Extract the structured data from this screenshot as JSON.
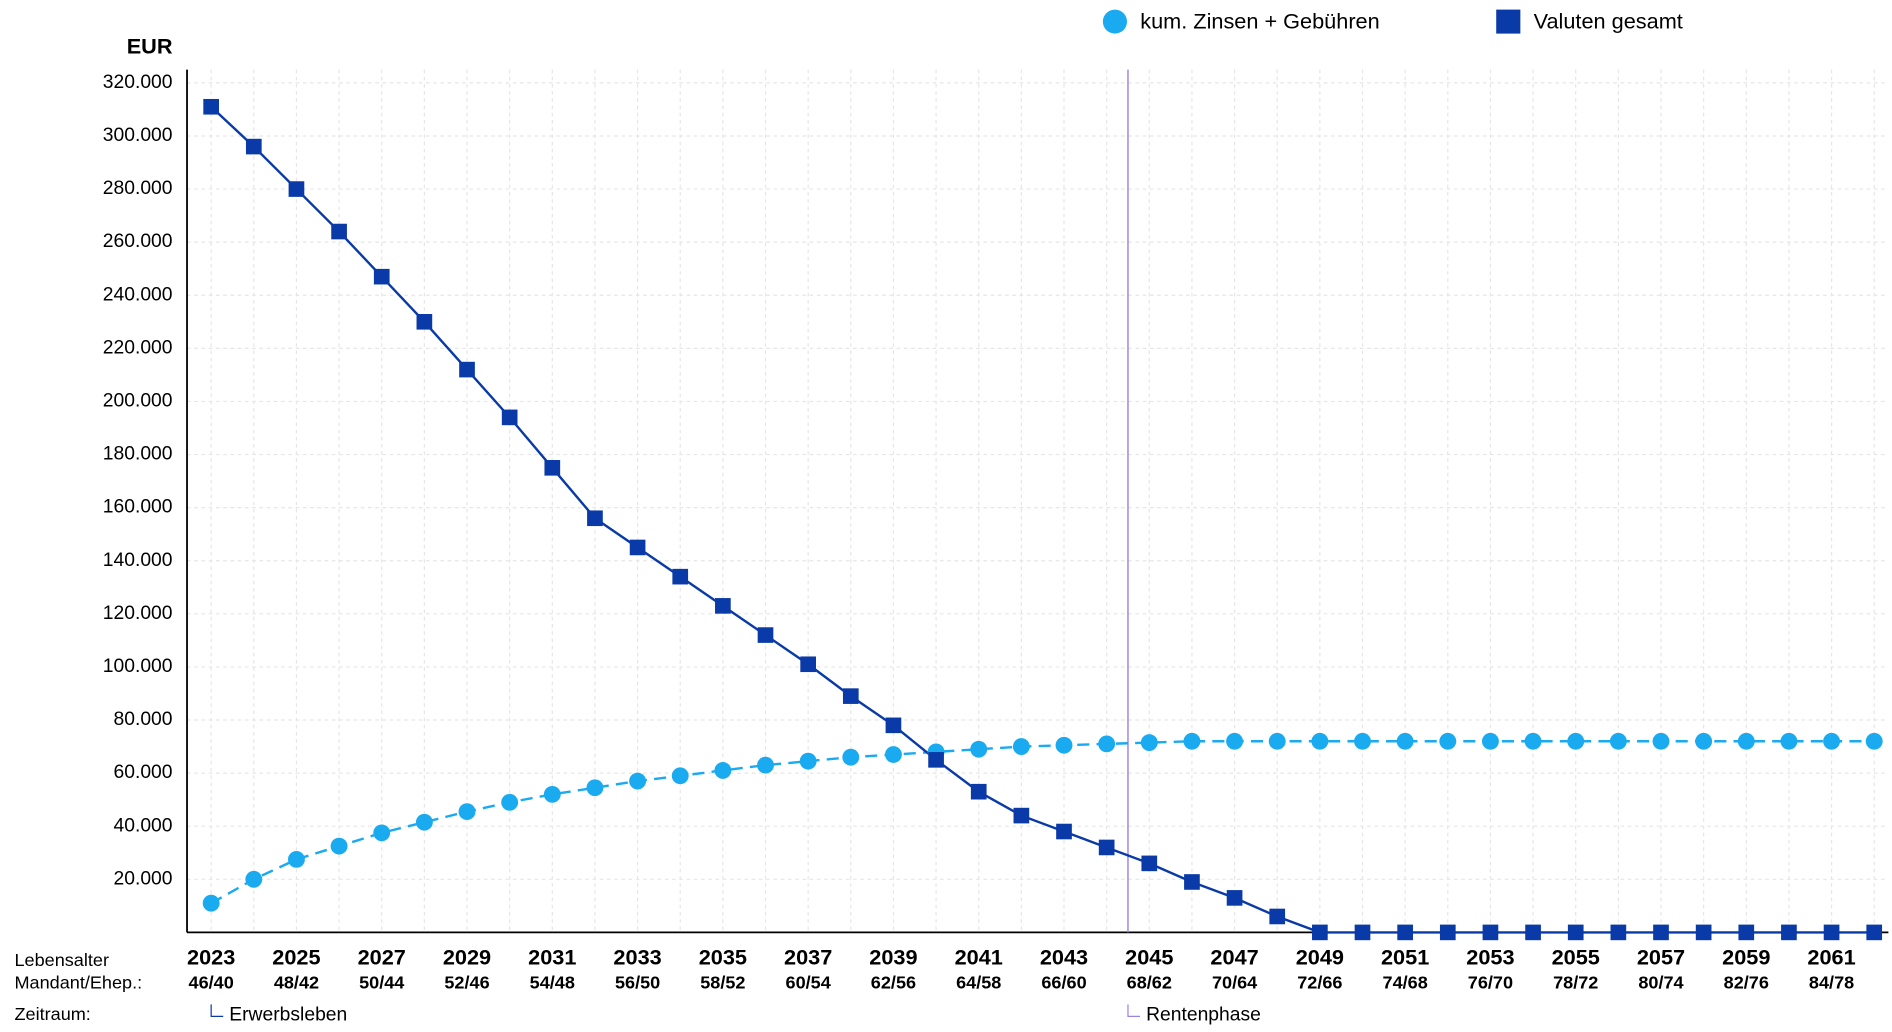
{
  "chart_data": {
    "type": "line",
    "y_label": "EUR",
    "categories": [
      "2023",
      null,
      "2025",
      null,
      "2027",
      null,
      "2029",
      null,
      "2031",
      null,
      "2033",
      null,
      "2035",
      null,
      "2037",
      null,
      "2039",
      null,
      "2041",
      null,
      "2043",
      null,
      "2045",
      null,
      "2047",
      null,
      "2049",
      null,
      "2051",
      null,
      "2053",
      null,
      "2055",
      null,
      "2057",
      null,
      "2059",
      null,
      "2061",
      null
    ],
    "ages": [
      "46/40",
      null,
      "48/42",
      null,
      "50/44",
      null,
      "52/46",
      null,
      "54/48",
      null,
      "56/50",
      null,
      "58/52",
      null,
      "60/54",
      null,
      "62/56",
      null,
      "64/58",
      null,
      "66/60",
      null,
      "68/62",
      null,
      "70/64",
      null,
      "72/66",
      null,
      "74/68",
      null,
      "76/70",
      null,
      "78/72",
      null,
      "80/74",
      null,
      "82/76",
      null,
      "84/78",
      null
    ],
    "row_labels": [
      "Lebensalter",
      "Mandant/Ehep.:",
      "Zeitraum:"
    ],
    "phases": [
      {
        "label": "Erwerbsleben",
        "start": "2023",
        "color": "#0a3aa8"
      },
      {
        "label": "Rentenphase",
        "start": "2045",
        "color": "#9b82ea"
      }
    ],
    "series": [
      {
        "name": "kum. Zinsen + Gebühren",
        "color": "#1aaaf0",
        "marker": "circle",
        "dashed": true,
        "values": [
          11000,
          20000,
          27500,
          32500,
          37500,
          41500,
          45500,
          49000,
          52000,
          54500,
          57000,
          59000,
          61000,
          63000,
          64500,
          66000,
          67000,
          68000,
          69000,
          70000,
          70500,
          71000,
          71500,
          72000,
          72000,
          72000,
          72000,
          72000,
          72000,
          72000,
          72000,
          72000,
          72000,
          72000,
          72000,
          72000,
          72000,
          72000,
          72000,
          72000
        ]
      },
      {
        "name": "Valuten gesamt",
        "color": "#0a3aa8",
        "marker": "square",
        "dashed": false,
        "values": [
          311000,
          296000,
          280000,
          264000,
          247000,
          230000,
          212000,
          194000,
          175000,
          156000,
          145000,
          134000,
          123000,
          112000,
          101000,
          89000,
          78000,
          65000,
          53000,
          44000,
          38000,
          32000,
          26000,
          19000,
          13000,
          6000,
          0,
          0,
          0,
          0,
          0,
          0,
          0,
          0,
          0,
          0,
          0,
          0,
          0,
          0
        ]
      }
    ],
    "ylim": [
      0,
      325000
    ],
    "yticks": [
      {
        "value": 20000,
        "label": "20.000"
      },
      {
        "value": 40000,
        "label": "40.000"
      },
      {
        "value": 60000,
        "label": "60.000"
      },
      {
        "value": 80000,
        "label": "80.000"
      },
      {
        "value": 100000,
        "label": "100.000"
      },
      {
        "value": 120000,
        "label": "120.000"
      },
      {
        "value": 140000,
        "label": "140.000"
      },
      {
        "value": 160000,
        "label": "160.000"
      },
      {
        "value": 180000,
        "label": "180.000"
      },
      {
        "value": 200000,
        "label": "200.000"
      },
      {
        "value": 220000,
        "label": "220.000"
      },
      {
        "value": 240000,
        "label": "240.000"
      },
      {
        "value": 260000,
        "label": "260.000"
      },
      {
        "value": 280000,
        "label": "280.000"
      },
      {
        "value": 300000,
        "label": "300.000"
      },
      {
        "value": 320000,
        "label": "320.000"
      }
    ],
    "grid": true
  }
}
